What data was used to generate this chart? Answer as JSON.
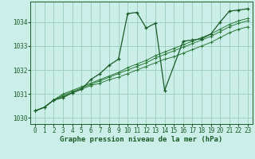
{
  "title": "Graphe pression niveau de la mer (hPa)",
  "bg_color": "#cceee8",
  "plot_bg_color": "#cceee8",
  "grid_color": "#99ccbb",
  "line_color_main": "#1a5c28",
  "line_color_trend": "#2a7a38",
  "xlim": [
    -0.5,
    23.5
  ],
  "ylim": [
    1029.75,
    1034.85
  ],
  "xticks": [
    0,
    1,
    2,
    3,
    4,
    5,
    6,
    7,
    8,
    9,
    10,
    11,
    12,
    13,
    14,
    15,
    16,
    17,
    18,
    19,
    20,
    21,
    22,
    23
  ],
  "yticks": [
    1030,
    1031,
    1032,
    1033,
    1034
  ],
  "series_main": {
    "x": [
      0,
      1,
      2,
      3,
      4,
      5,
      6,
      7,
      8,
      9,
      10,
      11,
      12,
      13,
      14,
      16,
      17,
      18,
      19,
      20,
      21,
      22,
      23
    ],
    "y": [
      1030.3,
      1030.45,
      1030.75,
      1030.85,
      1031.05,
      1031.2,
      1031.6,
      1031.85,
      1032.2,
      1032.45,
      1034.35,
      1034.4,
      1033.75,
      1033.95,
      1031.15,
      1033.2,
      1033.25,
      1033.3,
      1033.5,
      1034.0,
      1034.45,
      1034.5,
      1034.55
    ]
  },
  "series_t1": {
    "x": [
      0,
      1,
      2,
      3,
      4,
      5,
      6,
      7,
      8,
      9,
      10,
      11,
      12,
      13,
      14,
      15,
      16,
      17,
      18,
      19,
      20,
      21,
      22,
      23
    ],
    "y": [
      1030.3,
      1030.45,
      1030.75,
      1030.9,
      1031.05,
      1031.2,
      1031.35,
      1031.45,
      1031.6,
      1031.7,
      1031.85,
      1032.0,
      1032.15,
      1032.3,
      1032.45,
      1032.55,
      1032.7,
      1032.85,
      1033.0,
      1033.15,
      1033.35,
      1033.55,
      1033.7,
      1033.8
    ]
  },
  "series_t2": {
    "x": [
      0,
      1,
      2,
      3,
      4,
      5,
      6,
      7,
      8,
      9,
      10,
      11,
      12,
      13,
      14,
      15,
      16,
      17,
      18,
      19,
      20,
      21,
      22,
      23
    ],
    "y": [
      1030.3,
      1030.45,
      1030.75,
      1030.95,
      1031.1,
      1031.25,
      1031.4,
      1031.55,
      1031.7,
      1031.85,
      1032.0,
      1032.15,
      1032.3,
      1032.5,
      1032.65,
      1032.8,
      1032.95,
      1033.1,
      1033.25,
      1033.4,
      1033.6,
      1033.8,
      1033.95,
      1034.05
    ]
  },
  "series_t3": {
    "x": [
      0,
      1,
      2,
      3,
      4,
      5,
      6,
      7,
      8,
      9,
      10,
      11,
      12,
      13,
      14,
      15,
      16,
      17,
      18,
      19,
      20,
      21,
      22,
      23
    ],
    "y": [
      1030.3,
      1030.45,
      1030.75,
      1031.0,
      1031.15,
      1031.3,
      1031.45,
      1031.6,
      1031.75,
      1031.9,
      1032.1,
      1032.25,
      1032.4,
      1032.6,
      1032.75,
      1032.9,
      1033.05,
      1033.2,
      1033.35,
      1033.5,
      1033.7,
      1033.9,
      1034.05,
      1034.15
    ]
  },
  "tick_fontsize": 5.5,
  "title_fontsize": 6.5
}
